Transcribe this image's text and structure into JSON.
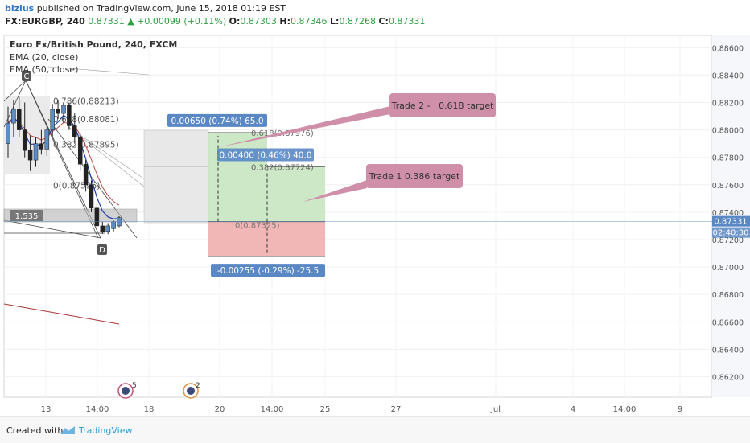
{
  "header": {
    "author": "bizlus",
    "published": "published on TradingView.com, June 15, 2018 01:19 EST",
    "symbol": "FX:EURGBP, 240",
    "last": "0.87331",
    "change": "+0.00099 (+0.11%)",
    "o_label": "O:",
    "o": "0.87303",
    "h_label": "H:",
    "h": "0.87346",
    "l_label": "L:",
    "l": "0.87268",
    "c_label": "C:",
    "c": "0.87331"
  },
  "legend": {
    "title": "Euro Fx/British Pound, 240, FXCM",
    "ema1": "EMA (20, close)",
    "ema2": "EMA (50, close)"
  },
  "chart_data": {
    "type": "candlestick",
    "y_axis": {
      "ylim": [
        0.8605,
        0.8869
      ],
      "ticks": [
        "0.88600",
        "0.88400",
        "0.88200",
        "0.88000",
        "0.87800",
        "0.87600",
        "0.87400",
        "0.87200",
        "0.87000",
        "0.86800",
        "0.86600",
        "0.86400",
        "0.86200"
      ],
      "tick_values": [
        0.886,
        0.884,
        0.882,
        0.88,
        0.878,
        0.876,
        0.874,
        0.872,
        0.87,
        0.868,
        0.866,
        0.864,
        0.862
      ],
      "last_price_label": "0.87331",
      "countdown_label": "02:40:30",
      "last_price": 0.87331
    },
    "x_axis": {
      "ticks": [
        "13",
        "14:00",
        "18",
        "20",
        "14:00",
        "25",
        "27",
        "Jul",
        "4",
        "14:00",
        "9"
      ]
    },
    "candles": [
      {
        "o": 0.879,
        "h": 0.8817,
        "l": 0.878,
        "c": 0.8805,
        "up": true
      },
      {
        "o": 0.8805,
        "h": 0.8822,
        "l": 0.8795,
        "c": 0.8815,
        "up": true
      },
      {
        "o": 0.8815,
        "h": 0.8824,
        "l": 0.8795,
        "c": 0.88,
        "up": false
      },
      {
        "o": 0.88,
        "h": 0.882,
        "l": 0.878,
        "c": 0.8785,
        "up": false
      },
      {
        "o": 0.8785,
        "h": 0.8796,
        "l": 0.877,
        "c": 0.8778,
        "up": false
      },
      {
        "o": 0.8778,
        "h": 0.8795,
        "l": 0.8773,
        "c": 0.879,
        "up": true
      },
      {
        "o": 0.879,
        "h": 0.88,
        "l": 0.8782,
        "c": 0.8786,
        "up": false
      },
      {
        "o": 0.8786,
        "h": 0.8805,
        "l": 0.8781,
        "c": 0.88,
        "up": true
      },
      {
        "o": 0.88,
        "h": 0.8819,
        "l": 0.8795,
        "c": 0.8815,
        "up": true
      },
      {
        "o": 0.8815,
        "h": 0.8822,
        "l": 0.8808,
        "c": 0.8812,
        "up": false
      },
      {
        "o": 0.8812,
        "h": 0.882,
        "l": 0.8805,
        "c": 0.8818,
        "up": true
      },
      {
        "o": 0.8818,
        "h": 0.882,
        "l": 0.88,
        "c": 0.8803,
        "up": false
      },
      {
        "o": 0.8803,
        "h": 0.8812,
        "l": 0.879,
        "c": 0.8795,
        "up": false
      },
      {
        "o": 0.8795,
        "h": 0.8798,
        "l": 0.877,
        "c": 0.8775,
        "up": false
      },
      {
        "o": 0.8775,
        "h": 0.8778,
        "l": 0.8755,
        "c": 0.876,
        "up": false
      },
      {
        "o": 0.876,
        "h": 0.8763,
        "l": 0.874,
        "c": 0.8743,
        "up": false
      },
      {
        "o": 0.8743,
        "h": 0.8746,
        "l": 0.8725,
        "c": 0.873,
        "up": false
      },
      {
        "o": 0.873,
        "h": 0.8733,
        "l": 0.8724,
        "c": 0.8726,
        "up": false
      },
      {
        "o": 0.8726,
        "h": 0.8732,
        "l": 0.8724,
        "c": 0.873,
        "up": true
      },
      {
        "o": 0.8728,
        "h": 0.8734,
        "l": 0.8726,
        "c": 0.8733,
        "up": true
      },
      {
        "o": 0.873,
        "h": 0.8737,
        "l": 0.8729,
        "c": 0.8736,
        "up": true
      }
    ],
    "fib_labels": [
      {
        "text": "0.786(0.88213)",
        "price": 0.88213
      },
      {
        "text": "0.618(0.88081)",
        "price": 0.88081
      },
      {
        "text": "0.382(0.87895)",
        "price": 0.87895
      },
      {
        "text": "0(0.87596)",
        "price": 0.87596
      }
    ],
    "pattern_labels": [
      "C",
      "D"
    ],
    "ratio_label": "1.535",
    "position": {
      "target2_label": "0.00650 (0.74%) 65.0",
      "target2_price": 0.87981,
      "fib2_label": "0.618(0.87976)",
      "target1_label": "0.00400 (0.46%) 40.0",
      "target1_price": 0.87731,
      "fib1_label": "0.382(0.87724)",
      "entry_price": 0.87331,
      "entry_label": "0(0.87325)",
      "stop_label": "-0.00255 (-0.29%) -25.5",
      "stop_price": 0.87076
    },
    "callouts": [
      "Trade 2 -   0.618 target",
      "Trade 1 0.386 target"
    ],
    "event_badges": [
      "5",
      "2"
    ],
    "colors": {
      "up": "#5b8ec9",
      "down": "#222222",
      "profit": "#c8e6c0",
      "loss": "#f0aeae",
      "axis": "#f0f3fa",
      "callout": "#d08fa8",
      "label": "#5a88c5",
      "ema": "#1f3fa6"
    }
  },
  "footer": {
    "created": "Created with",
    "brand": "TradingView"
  }
}
